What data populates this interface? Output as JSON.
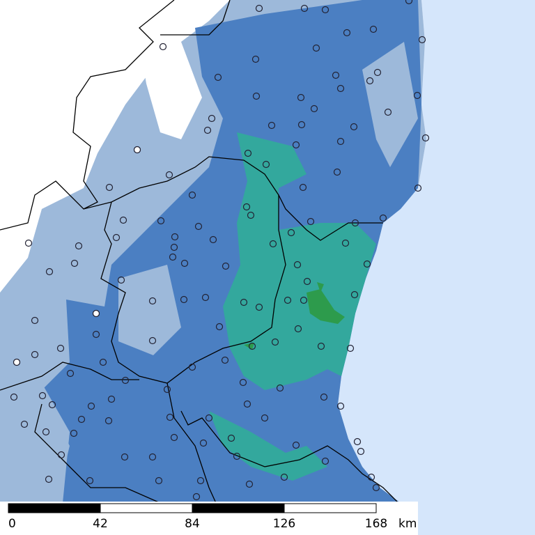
{
  "scale_bar": {
    "ticks": [
      0,
      42,
      84,
      126,
      168
    ],
    "unit": "km"
  }
}
